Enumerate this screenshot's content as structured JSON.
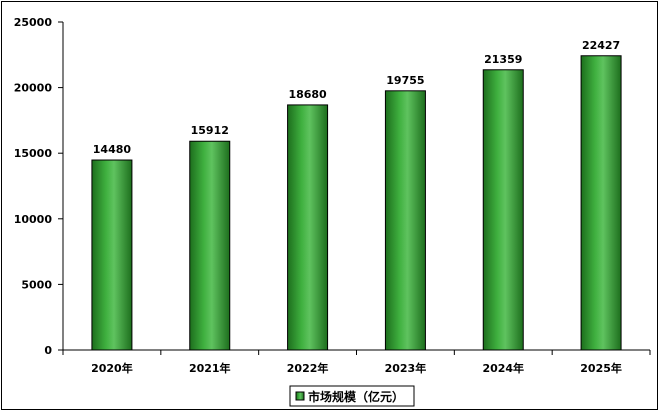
{
  "chart_data": {
    "type": "bar",
    "categories": [
      "2020年",
      "2021年",
      "2022年",
      "2023年",
      "2024年",
      "2025年"
    ],
    "series": [
      {
        "name": "市场规模（亿元）",
        "values": [
          14480,
          15912,
          18680,
          19755,
          21359,
          22427
        ]
      }
    ],
    "data_labels": [
      "14480",
      "15912",
      "18680",
      "19755",
      "21359",
      "22427"
    ],
    "y_ticks": [
      "0",
      "5000",
      "10000",
      "15000",
      "20000",
      "25000"
    ],
    "ylim": [
      0,
      25000
    ],
    "title": "",
    "xlabel": "",
    "ylabel": "",
    "legend_position": "bottom",
    "grid": false,
    "colors": {
      "bar_fill": "#2f9a2f",
      "bar_edge": "#000000",
      "bar_highlight": "#5fc35f",
      "bar_shadow": "#1d6e1d"
    }
  }
}
